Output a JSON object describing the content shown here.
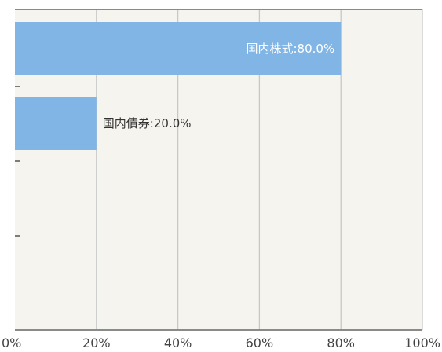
{
  "colors": {
    "plot_background": "#f6f4ee",
    "gridline": "#c8c8c8",
    "axis": "#8a8a8a",
    "bar": "#80b5e6",
    "label_inside": "#ffffff",
    "label_outside": "#333333"
  },
  "chart_data": {
    "type": "bar",
    "orientation": "horizontal",
    "title": "",
    "xlabel": "",
    "ylabel": "",
    "xlim": [
      0,
      100
    ],
    "grid": true,
    "legend": "none",
    "categories": [
      "国内株式",
      "国内債券",
      ""
    ],
    "values": [
      80.0,
      20.0,
      null
    ],
    "data_labels": [
      "国内株式:80.0%",
      "国内債券:20.0%",
      ""
    ],
    "x_ticks": [
      {
        "value": 0,
        "label": "0%"
      },
      {
        "value": 20,
        "label": "20%"
      },
      {
        "value": 40,
        "label": "40%"
      },
      {
        "value": 60,
        "label": "60%"
      },
      {
        "value": 80,
        "label": "80%"
      },
      {
        "value": 100,
        "label": "100%"
      }
    ]
  }
}
